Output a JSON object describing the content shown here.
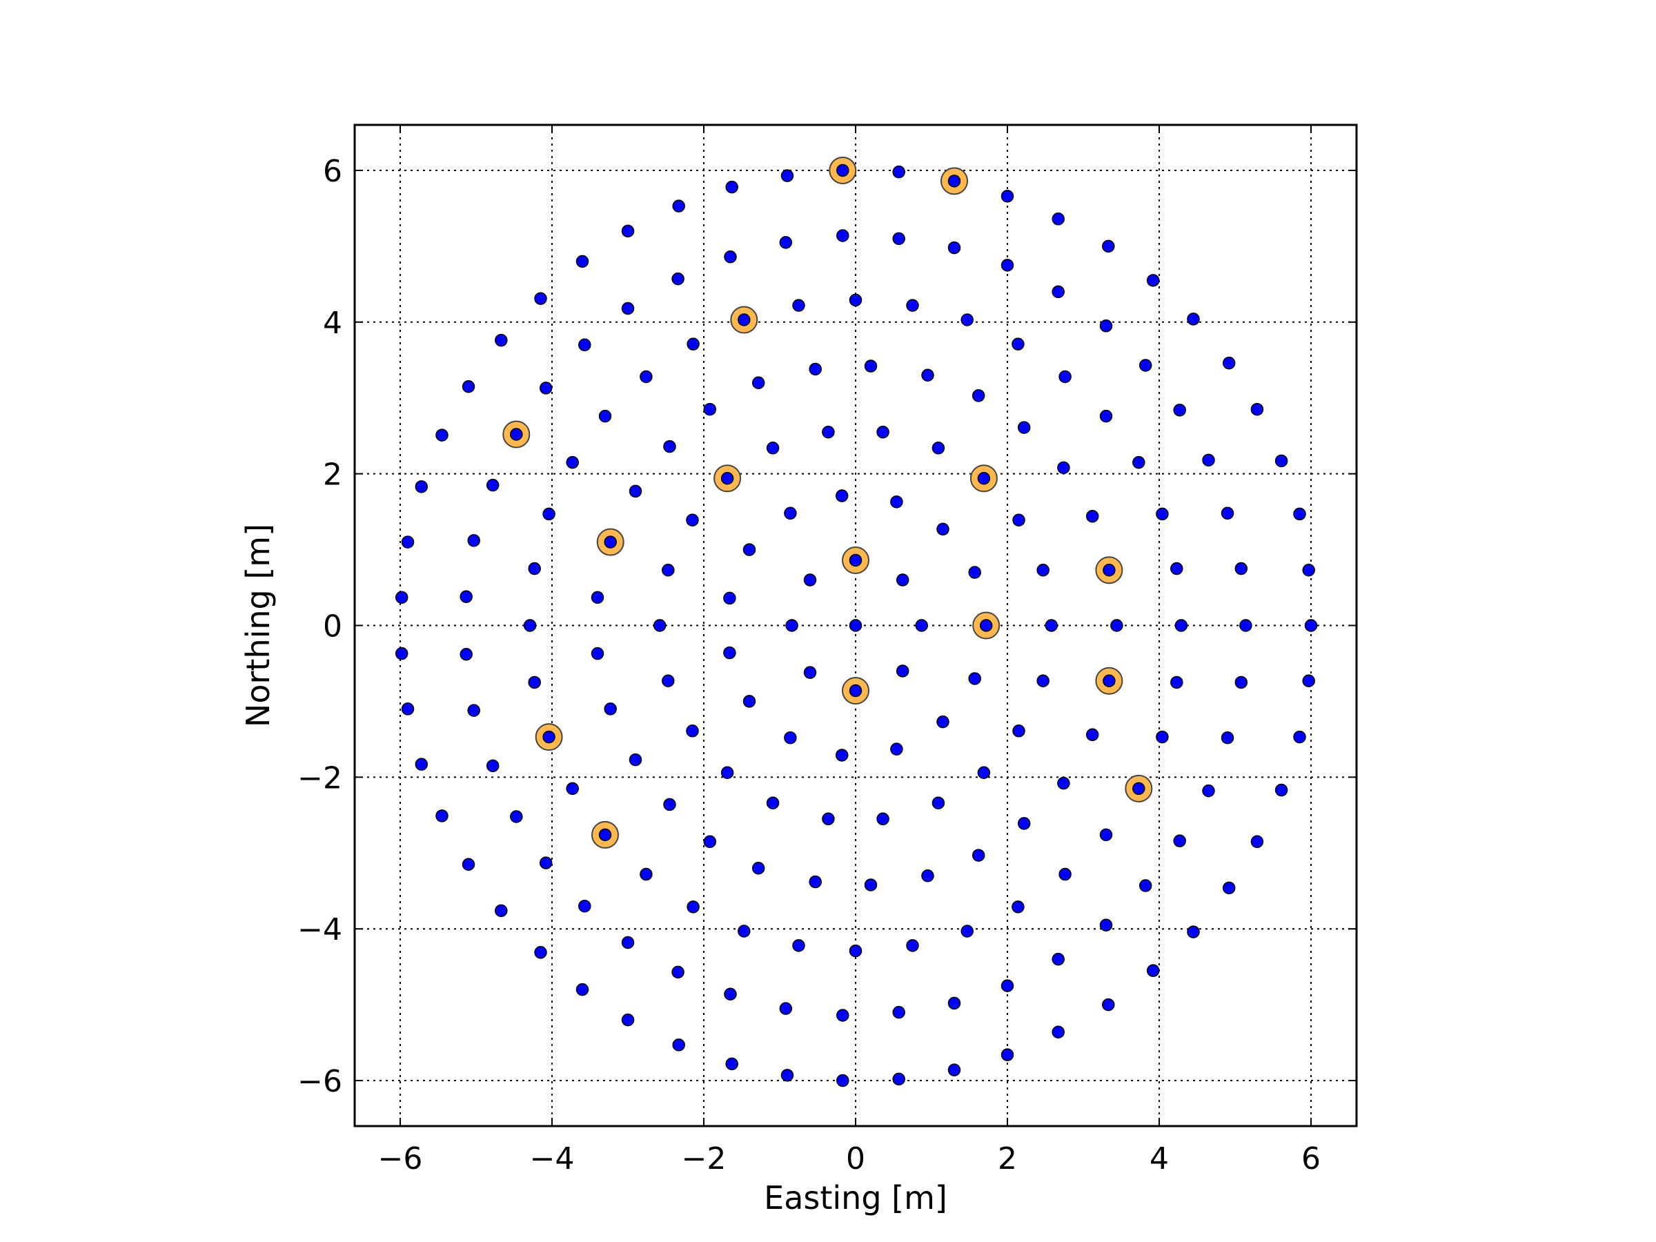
{
  "chart_data": {
    "type": "scatter",
    "title": "",
    "xlabel": "Easting [m]",
    "ylabel": "Northing [m]",
    "xlim": [
      -6.6,
      6.6
    ],
    "ylim": [
      -6.6,
      6.6
    ],
    "xticks": [
      -6,
      -4,
      -2,
      0,
      2,
      4,
      6
    ],
    "yticks": [
      -6,
      -4,
      -2,
      0,
      2,
      4,
      6
    ],
    "xtick_labels": [
      "−6",
      "−4",
      "−2",
      "0",
      "2",
      "4",
      "6"
    ],
    "ytick_labels": [
      "−6",
      "−4",
      "−2",
      "0",
      "2",
      "4",
      "6"
    ],
    "grid": true,
    "colors": {
      "antenna": "#0000ff",
      "highlight": "#ffb84d",
      "marker_edge": "#000000"
    },
    "series": [
      {
        "marker": "circle",
        "color": "#0000ff",
        "points": [
          [
            -0.17,
            6.0
          ],
          [
            0.57,
            5.98
          ],
          [
            1.3,
            5.86
          ],
          [
            2.0,
            5.66
          ],
          [
            2.67,
            5.36
          ],
          [
            3.33,
            5.0
          ],
          [
            3.92,
            4.55
          ],
          [
            4.45,
            4.04
          ],
          [
            4.92,
            3.46
          ],
          [
            5.29,
            2.85
          ],
          [
            5.61,
            2.17
          ],
          [
            5.85,
            1.47
          ],
          [
            5.97,
            0.73
          ],
          [
            6.0,
            0.0
          ],
          [
            5.97,
            -0.73
          ],
          [
            5.85,
            -1.47
          ],
          [
            5.61,
            -2.17
          ],
          [
            5.29,
            -2.85
          ],
          [
            4.92,
            -3.46
          ],
          [
            4.45,
            -4.04
          ],
          [
            3.92,
            -4.55
          ],
          [
            3.33,
            -5.0
          ],
          [
            2.67,
            -5.36
          ],
          [
            2.0,
            -5.66
          ],
          [
            1.3,
            -5.86
          ],
          [
            0.57,
            -5.98
          ],
          [
            -0.17,
            -6.0
          ],
          [
            -0.9,
            -5.93
          ],
          [
            -1.63,
            -5.78
          ],
          [
            -2.33,
            -5.53
          ],
          [
            -3.0,
            -5.2
          ],
          [
            -3.6,
            -4.8
          ],
          [
            -4.15,
            -4.31
          ],
          [
            -4.67,
            -3.76
          ],
          [
            -5.1,
            -3.15
          ],
          [
            -5.45,
            -2.51
          ],
          [
            -5.72,
            -1.83
          ],
          [
            -5.9,
            -1.1
          ],
          [
            -5.98,
            -0.37
          ],
          [
            -5.98,
            0.37
          ],
          [
            -5.9,
            1.1
          ],
          [
            -5.72,
            1.83
          ],
          [
            -5.45,
            2.51
          ],
          [
            -5.1,
            3.15
          ],
          [
            -4.67,
            3.76
          ],
          [
            -4.15,
            4.31
          ],
          [
            -3.6,
            4.8
          ],
          [
            -3.0,
            5.2
          ],
          [
            -2.33,
            5.53
          ],
          [
            -1.63,
            5.78
          ],
          [
            -0.9,
            5.93
          ],
          [
            -0.17,
            5.14
          ],
          [
            0.57,
            5.1
          ],
          [
            1.3,
            4.98
          ],
          [
            2.0,
            4.75
          ],
          [
            2.67,
            4.4
          ],
          [
            3.3,
            3.95
          ],
          [
            3.82,
            3.43
          ],
          [
            4.27,
            2.84
          ],
          [
            4.65,
            2.18
          ],
          [
            4.9,
            1.48
          ],
          [
            5.08,
            0.75
          ],
          [
            5.14,
            0.0
          ],
          [
            5.08,
            -0.75
          ],
          [
            4.9,
            -1.48
          ],
          [
            4.65,
            -2.18
          ],
          [
            4.27,
            -2.84
          ],
          [
            3.82,
            -3.43
          ],
          [
            3.3,
            -3.95
          ],
          [
            2.67,
            -4.4
          ],
          [
            2.0,
            -4.75
          ],
          [
            1.3,
            -4.98
          ],
          [
            0.57,
            -5.1
          ],
          [
            -0.17,
            -5.14
          ],
          [
            -0.92,
            -5.05
          ],
          [
            -1.65,
            -4.86
          ],
          [
            -2.34,
            -4.57
          ],
          [
            -3.0,
            -4.18
          ],
          [
            -3.57,
            -3.7
          ],
          [
            -4.08,
            -3.13
          ],
          [
            -4.47,
            -2.52
          ],
          [
            -4.78,
            -1.85
          ],
          [
            -5.03,
            -1.12
          ],
          [
            -5.13,
            -0.38
          ],
          [
            -5.13,
            0.38
          ],
          [
            -5.03,
            1.12
          ],
          [
            -4.78,
            1.85
          ],
          [
            -4.47,
            2.52
          ],
          [
            -4.08,
            3.13
          ],
          [
            -3.57,
            3.7
          ],
          [
            -3.0,
            4.18
          ],
          [
            -2.34,
            4.57
          ],
          [
            -1.65,
            4.86
          ],
          [
            -0.92,
            5.05
          ],
          [
            0.0,
            4.29
          ],
          [
            0.75,
            4.22
          ],
          [
            1.47,
            4.03
          ],
          [
            2.14,
            3.71
          ],
          [
            2.76,
            3.28
          ],
          [
            3.3,
            2.76
          ],
          [
            3.73,
            2.15
          ],
          [
            4.04,
            1.47
          ],
          [
            4.23,
            0.75
          ],
          [
            4.29,
            0.0
          ],
          [
            4.23,
            -0.75
          ],
          [
            4.04,
            -1.47
          ],
          [
            3.73,
            -2.15
          ],
          [
            3.3,
            -2.76
          ],
          [
            2.76,
            -3.28
          ],
          [
            2.14,
            -3.71
          ],
          [
            1.47,
            -4.03
          ],
          [
            0.75,
            -4.22
          ],
          [
            0.0,
            -4.29
          ],
          [
            -0.75,
            -4.22
          ],
          [
            -1.47,
            -4.03
          ],
          [
            -2.14,
            -3.71
          ],
          [
            -2.76,
            -3.28
          ],
          [
            -3.3,
            -2.76
          ],
          [
            -3.73,
            -2.15
          ],
          [
            -4.04,
            -1.47
          ],
          [
            -4.23,
            -0.75
          ],
          [
            -4.29,
            0.0
          ],
          [
            -4.23,
            0.75
          ],
          [
            -4.04,
            1.47
          ],
          [
            -3.73,
            2.15
          ],
          [
            -3.3,
            2.76
          ],
          [
            -2.76,
            3.28
          ],
          [
            -2.14,
            3.71
          ],
          [
            -1.47,
            4.03
          ],
          [
            -0.75,
            4.22
          ],
          [
            0.2,
            3.42
          ],
          [
            0.95,
            3.3
          ],
          [
            1.62,
            3.03
          ],
          [
            2.22,
            2.61
          ],
          [
            2.74,
            2.08
          ],
          [
            3.12,
            1.44
          ],
          [
            3.34,
            0.73
          ],
          [
            3.44,
            0.0
          ],
          [
            3.34,
            -0.73
          ],
          [
            3.12,
            -1.44
          ],
          [
            2.74,
            -2.08
          ],
          [
            2.22,
            -2.61
          ],
          [
            1.62,
            -3.03
          ],
          [
            0.95,
            -3.3
          ],
          [
            0.2,
            -3.42
          ],
          [
            -0.53,
            -3.38
          ],
          [
            -1.28,
            -3.2
          ],
          [
            -1.92,
            -2.85
          ],
          [
            -2.45,
            -2.36
          ],
          [
            -2.9,
            -1.77
          ],
          [
            -3.23,
            -1.1
          ],
          [
            -3.4,
            -0.37
          ],
          [
            -3.4,
            0.37
          ],
          [
            -3.23,
            1.1
          ],
          [
            -2.9,
            1.77
          ],
          [
            -2.45,
            2.36
          ],
          [
            -1.92,
            2.85
          ],
          [
            -1.28,
            3.2
          ],
          [
            -0.53,
            3.38
          ],
          [
            0.36,
            2.55
          ],
          [
            1.09,
            2.34
          ],
          [
            1.69,
            1.94
          ],
          [
            2.15,
            1.39
          ],
          [
            2.47,
            0.73
          ],
          [
            2.58,
            0.0
          ],
          [
            2.47,
            -0.73
          ],
          [
            2.15,
            -1.39
          ],
          [
            1.69,
            -1.94
          ],
          [
            1.09,
            -2.34
          ],
          [
            0.36,
            -2.55
          ],
          [
            -0.36,
            -2.55
          ],
          [
            -1.09,
            -2.34
          ],
          [
            -1.69,
            -1.94
          ],
          [
            -2.15,
            -1.39
          ],
          [
            -2.47,
            -0.73
          ],
          [
            -2.58,
            0.0
          ],
          [
            -2.47,
            0.73
          ],
          [
            -2.15,
            1.39
          ],
          [
            -1.69,
            1.94
          ],
          [
            -1.09,
            2.34
          ],
          [
            -0.36,
            2.55
          ],
          [
            0.54,
            1.63
          ],
          [
            1.15,
            1.27
          ],
          [
            1.57,
            0.7
          ],
          [
            1.72,
            0.0
          ],
          [
            1.57,
            -0.7
          ],
          [
            1.15,
            -1.27
          ],
          [
            0.54,
            -1.63
          ],
          [
            -0.18,
            -1.71
          ],
          [
            -0.86,
            -1.48
          ],
          [
            -1.4,
            -1.0
          ],
          [
            -1.66,
            -0.36
          ],
          [
            -1.66,
            0.36
          ],
          [
            -1.4,
            1.0
          ],
          [
            -0.86,
            1.48
          ],
          [
            -0.18,
            1.71
          ],
          [
            0.0,
            0.86
          ],
          [
            0.62,
            0.6
          ],
          [
            0.87,
            0.0
          ],
          [
            0.62,
            -0.6
          ],
          [
            0.0,
            -0.86
          ],
          [
            -0.6,
            -0.62
          ],
          [
            -0.84,
            0.0
          ],
          [
            -0.6,
            0.6
          ],
          [
            0.0,
            0.0
          ]
        ]
      },
      {
        "marker": "circle-large",
        "color": "#ffb84d",
        "points": [
          [
            -0.17,
            6.0
          ],
          [
            1.3,
            5.86
          ],
          [
            -1.47,
            4.03
          ],
          [
            -4.47,
            2.52
          ],
          [
            -1.69,
            1.94
          ],
          [
            1.69,
            1.94
          ],
          [
            -3.23,
            1.1
          ],
          [
            0.0,
            0.86
          ],
          [
            3.34,
            0.73
          ],
          [
            1.72,
            0.0
          ],
          [
            3.34,
            -0.73
          ],
          [
            0.0,
            -0.86
          ],
          [
            -4.04,
            -1.47
          ],
          [
            3.73,
            -2.15
          ],
          [
            -3.3,
            -2.76
          ]
        ]
      }
    ]
  }
}
